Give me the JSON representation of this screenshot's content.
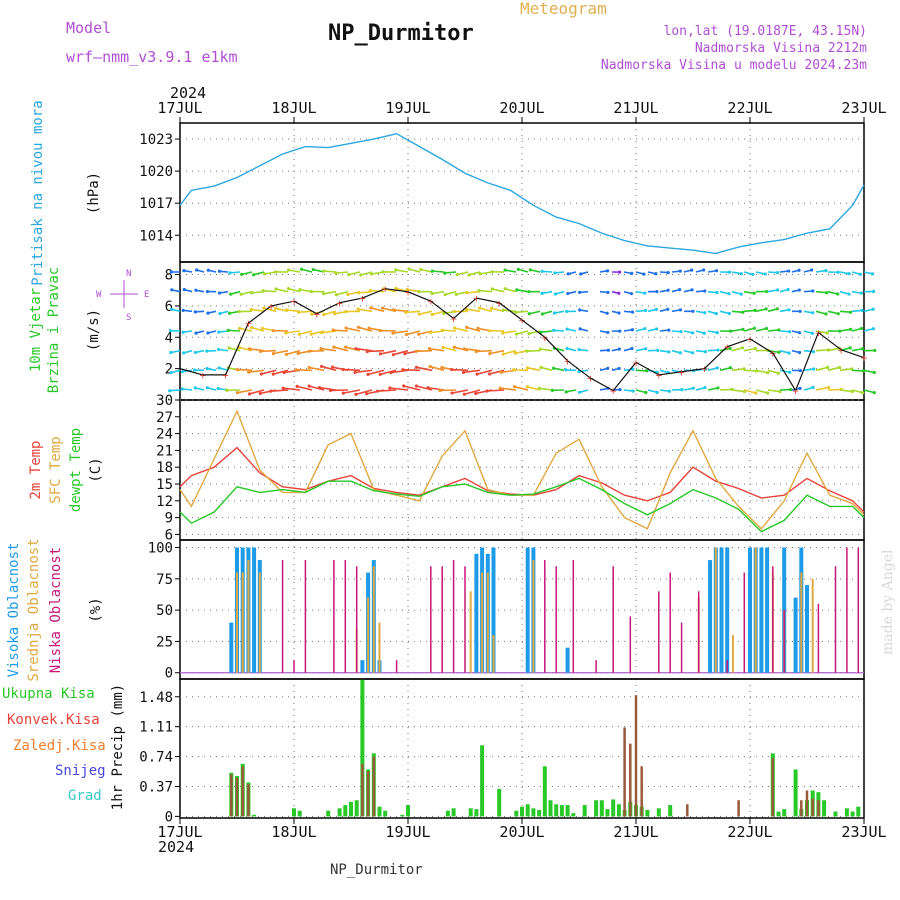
{
  "header": {
    "model_label": "Model",
    "model_value": "wrf—nmm_v3.9.1  e1km",
    "title": "NP_Durmitor",
    "meteogram_label": "Meteogram",
    "lonlat": "lon,lat (19.0187E, 43.15N)",
    "altitude": "Nadmorska Visina 2212m",
    "model_altitude": "Nadmorska Visina u modelu 2024.23m",
    "year": "2024",
    "footer_station": "NP_Durmitor",
    "signature": "made by Angel"
  },
  "colors": {
    "pressure": "#2aa6e0",
    "wind_label": "#28c828",
    "temp2m": "#e8433a",
    "sfc": "#e0a840",
    "dewpt": "#28c828",
    "high": "#1e9be8",
    "mid": "#e0a840",
    "low": "#c8167a",
    "total_precip": "#28c828",
    "conv_precip": "#e8433a",
    "frz_precip": "#f08030",
    "snow": "#4848e0",
    "hail": "#38c8c8",
    "purple_text": "#b04fd6"
  },
  "x_ticks": [
    "17JUL",
    "18JUL",
    "19JUL",
    "20JUL",
    "21JUL",
    "22JUL",
    "23JUL"
  ],
  "chart_data": [
    {
      "type": "line",
      "ylabel_left": "Pritisak na nivou mora",
      "ylabel_unit": "(hPa)",
      "yticks": [
        1014,
        1017,
        1020,
        1023
      ],
      "ylim": [
        1011.5,
        1024.5
      ],
      "series": [
        {
          "key": "pressure",
          "x": [
            0,
            0.1,
            0.3,
            0.5,
            0.7,
            0.9,
            1.1,
            1.3,
            1.5,
            1.7,
            1.9,
            2.1,
            2.3,
            2.5,
            2.7,
            2.9,
            3.1,
            3.3,
            3.5,
            3.7,
            3.9,
            4.1,
            4.3,
            4.5,
            4.7,
            4.9,
            5.1,
            5.3,
            5.5,
            5.7,
            5.9,
            6.0
          ],
          "values": [
            1016.8,
            1018.2,
            1018.6,
            1019.4,
            1020.5,
            1021.6,
            1022.3,
            1022.2,
            1022.6,
            1023.0,
            1023.5,
            1022.3,
            1021.1,
            1019.8,
            1018.9,
            1018.2,
            1016.8,
            1015.7,
            1015.1,
            1014.2,
            1013.5,
            1013.0,
            1012.8,
            1012.6,
            1012.3,
            1012.9,
            1013.3,
            1013.6,
            1014.2,
            1014.6,
            1016.8,
            1018.7
          ]
        }
      ]
    },
    {
      "type": "line",
      "ylabel_left": [
        "10m Vjetar",
        "Brzina i Pravac"
      ],
      "ylabel_unit": "(m/s)",
      "compass": [
        "N",
        "E",
        "S",
        "W"
      ],
      "yticks": [
        2,
        4,
        6,
        8
      ],
      "ylim": [
        0,
        8.8
      ],
      "series": [
        {
          "key": "wind",
          "x": [
            0,
            0.2,
            0.4,
            0.6,
            0.8,
            1.0,
            1.2,
            1.4,
            1.6,
            1.8,
            2.0,
            2.2,
            2.4,
            2.6,
            2.8,
            3.0,
            3.2,
            3.4,
            3.6,
            3.8,
            4.0,
            4.2,
            4.4,
            4.6,
            4.8,
            5.0,
            5.2,
            5.4,
            5.6,
            5.8,
            6.0
          ],
          "values": [
            2.0,
            1.6,
            1.6,
            4.9,
            6.0,
            6.3,
            5.5,
            6.2,
            6.5,
            7.1,
            6.9,
            6.3,
            5.2,
            6.5,
            6.2,
            5.1,
            4.0,
            2.5,
            1.4,
            0.6,
            2.4,
            1.6,
            1.8,
            2.0,
            3.4,
            3.9,
            3.0,
            0.6,
            4.3,
            3.2,
            2.7
          ]
        }
      ]
    },
    {
      "type": "line",
      "ylabel_left": [
        "2m Temp",
        "SFC Temp",
        "dewpt Temp"
      ],
      "ylabel_unit": "(C)",
      "yticks": [
        6,
        9,
        12,
        15,
        18,
        21,
        24,
        27,
        30
      ],
      "ylim": [
        5,
        30
      ],
      "series": [
        {
          "key": "temp2m",
          "x": [
            0,
            0.1,
            0.3,
            0.5,
            0.7,
            0.9,
            1.1,
            1.3,
            1.5,
            1.7,
            1.9,
            2.1,
            2.3,
            2.5,
            2.7,
            2.9,
            3.1,
            3.3,
            3.5,
            3.7,
            3.9,
            4.1,
            4.3,
            4.5,
            4.7,
            4.9,
            5.1,
            5.3,
            5.5,
            5.7,
            5.9,
            6.0
          ],
          "values": [
            14.5,
            16.5,
            18.0,
            21.5,
            17.0,
            14.5,
            14.0,
            15.5,
            16.5,
            14.2,
            13.5,
            13.0,
            14.5,
            16.0,
            13.8,
            13.2,
            13.0,
            14.0,
            16.5,
            15.2,
            13.0,
            12.0,
            13.5,
            18.0,
            15.5,
            14.2,
            12.5,
            13.0,
            16.0,
            13.8,
            12.0,
            10.0
          ]
        },
        {
          "key": "sfc",
          "x": [
            0,
            0.1,
            0.3,
            0.5,
            0.7,
            0.9,
            1.1,
            1.3,
            1.5,
            1.7,
            1.9,
            2.1,
            2.3,
            2.5,
            2.7,
            2.9,
            3.1,
            3.3,
            3.5,
            3.7,
            3.9,
            4.1,
            4.3,
            4.5,
            4.7,
            4.9,
            5.1,
            5.3,
            5.5,
            5.7,
            5.9,
            6.0
          ],
          "values": [
            14.0,
            11.0,
            19.5,
            28.0,
            17.5,
            13.5,
            13.5,
            22.0,
            24.0,
            14.0,
            13.0,
            12.0,
            20.0,
            24.5,
            14.0,
            13.0,
            13.0,
            20.5,
            23.0,
            14.5,
            9.0,
            7.0,
            17.0,
            24.5,
            16.0,
            11.0,
            7.0,
            12.0,
            20.5,
            13.0,
            11.5,
            9.5
          ]
        },
        {
          "key": "dewpt",
          "x": [
            0,
            0.1,
            0.3,
            0.5,
            0.7,
            0.9,
            1.1,
            1.3,
            1.5,
            1.7,
            1.9,
            2.1,
            2.3,
            2.5,
            2.7,
            2.9,
            3.1,
            3.3,
            3.5,
            3.7,
            3.9,
            4.1,
            4.3,
            4.5,
            4.7,
            4.9,
            5.1,
            5.3,
            5.5,
            5.7,
            5.9,
            6.0
          ],
          "values": [
            10.0,
            8.0,
            10.0,
            14.5,
            13.5,
            14.0,
            13.5,
            15.5,
            15.5,
            13.8,
            13.2,
            12.8,
            14.5,
            15.0,
            13.5,
            13.0,
            13.2,
            14.5,
            16.0,
            14.0,
            11.5,
            9.5,
            11.5,
            14.0,
            12.5,
            10.5,
            6.5,
            8.5,
            13.0,
            11.0,
            11.0,
            9.0
          ]
        }
      ]
    },
    {
      "type": "bar",
      "ylabel_left": [
        "Visoka Oblacnost",
        "Srednja Oblacnost",
        "Niska Oblacnost"
      ],
      "ylabel_unit": "(%)",
      "yticks": [
        0,
        25,
        50,
        75,
        100
      ],
      "ylim": [
        -5,
        106
      ],
      "series": [
        {
          "key": "high",
          "x": [
            0.45,
            0.5,
            0.55,
            0.6,
            0.65,
            0.7,
            1.6,
            1.65,
            1.7,
            1.75,
            2.6,
            2.65,
            2.7,
            2.75,
            3.05,
            3.1,
            3.4,
            4.65,
            4.7,
            4.75,
            4.8,
            5.0,
            5.05,
            5.1,
            5.15,
            5.3,
            5.4,
            5.45,
            5.5
          ],
          "values": [
            40,
            100,
            100,
            100,
            100,
            90,
            10,
            80,
            90,
            10,
            95,
            100,
            95,
            100,
            100,
            100,
            20,
            90,
            100,
            100,
            100,
            100,
            100,
            100,
            100,
            100,
            60,
            100,
            70
          ]
        },
        {
          "key": "mid",
          "x": [
            0.5,
            0.55,
            0.6,
            0.7,
            1.55,
            1.65,
            1.7,
            1.75,
            2.55,
            2.65,
            2.7,
            2.75,
            3.1,
            4.55,
            4.7,
            4.85,
            5.05,
            5.2,
            5.3,
            5.45,
            5.55
          ],
          "values": [
            80,
            80,
            90,
            80,
            35,
            60,
            85,
            40,
            65,
            80,
            80,
            30,
            90,
            60,
            100,
            30,
            100,
            80,
            50,
            80,
            75
          ]
        },
        {
          "key": "low",
          "x": [
            0.9,
            1.0,
            1.1,
            1.35,
            1.45,
            1.55,
            1.9,
            2.2,
            2.3,
            2.4,
            2.5,
            3.2,
            3.3,
            3.45,
            3.65,
            3.8,
            3.95,
            4.2,
            4.3,
            4.4,
            4.55,
            4.8,
            4.95,
            5.2,
            5.3,
            5.6,
            5.75,
            5.85,
            5.95
          ],
          "values": [
            90,
            10,
            90,
            90,
            90,
            85,
            10,
            85,
            85,
            90,
            85,
            90,
            85,
            90,
            10,
            85,
            45,
            65,
            80,
            40,
            65,
            10,
            80,
            85,
            50,
            55,
            85,
            100,
            100
          ]
        }
      ]
    },
    {
      "type": "bar",
      "ylabel_left": "1hr Precip (mm)",
      "legend": [
        "Ukupna Kisa",
        "Konvek.Kisa",
        "Zaledj.Kisa",
        "Snijeg",
        "Grad"
      ],
      "yticks": [
        0,
        0.37,
        0.74,
        1.11,
        1.48
      ],
      "ylim": [
        -0.02,
        1.7
      ],
      "series": [
        {
          "key": "total_precip",
          "x": [
            0.45,
            0.5,
            0.55,
            0.6,
            0.65,
            1.0,
            1.05,
            1.3,
            1.4,
            1.45,
            1.5,
            1.55,
            1.6,
            1.65,
            1.7,
            1.75,
            1.8,
            1.95,
            2.0,
            2.35,
            2.4,
            2.55,
            2.6,
            2.65,
            2.8,
            2.95,
            3.0,
            3.05,
            3.1,
            3.15,
            3.2,
            3.25,
            3.3,
            3.35,
            3.4,
            3.45,
            3.55,
            3.65,
            3.7,
            3.75,
            3.8,
            3.85,
            3.9,
            3.95,
            4.0,
            4.05,
            4.1,
            4.2,
            4.3,
            5.2,
            5.25,
            5.3,
            5.4,
            5.45,
            5.5,
            5.55,
            5.6,
            5.65,
            5.75,
            5.85,
            5.9,
            5.95
          ],
          "values": [
            0.54,
            0.5,
            0.65,
            0.42,
            0.02,
            0.1,
            0.07,
            0.07,
            0.1,
            0.14,
            0.18,
            0.2,
            1.69,
            0.58,
            0.78,
            0.12,
            0.07,
            0.02,
            0.14,
            0.07,
            0.1,
            0.1,
            0.09,
            0.88,
            0.34,
            0.07,
            0.12,
            0.15,
            0.1,
            0.08,
            0.62,
            0.2,
            0.15,
            0.14,
            0.14,
            0.04,
            0.14,
            0.2,
            0.2,
            0.09,
            0.21,
            0.15,
            0.08,
            0.18,
            0.14,
            0.12,
            0.08,
            0.1,
            0.14,
            0.78,
            0.06,
            0.09,
            0.58,
            0.09,
            0.2,
            0.32,
            0.3,
            0.2,
            0.06,
            0.1,
            0.06,
            0.12
          ]
        },
        {
          "key": "conv_precip",
          "x": [
            0.45,
            0.5,
            0.55,
            0.6,
            1.6,
            1.65,
            1.7,
            3.9,
            3.95,
            4.0,
            4.05,
            4.45,
            4.9,
            5.2,
            5.45,
            5.5,
            5.55,
            5.6
          ],
          "values": [
            0.52,
            0.48,
            0.62,
            0.4,
            0.65,
            0.56,
            0.74,
            1.1,
            0.9,
            1.5,
            0.62,
            0.15,
            0.2,
            0.72,
            0.2,
            0.32,
            0.22,
            0.2
          ]
        }
      ]
    }
  ]
}
